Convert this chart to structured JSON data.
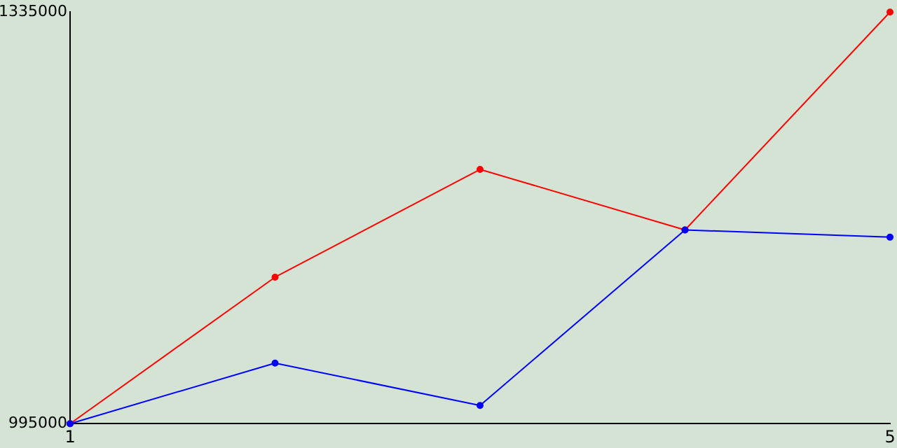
{
  "chart_data": {
    "type": "line",
    "x": [
      1,
      2,
      3,
      4,
      5
    ],
    "series": [
      {
        "color": "#ff0000",
        "values": [
          995000,
          1116000,
          1205000,
          1155000,
          1335000
        ]
      },
      {
        "color": "#0000ff",
        "values": [
          995000,
          1045000,
          1010000,
          1155000,
          1149000
        ]
      }
    ],
    "xlim": [
      1,
      5
    ],
    "xticks": [
      1,
      5
    ],
    "ylim": [
      995000,
      1335000
    ],
    "yticks": [
      995000,
      1335000
    ],
    "grid": false,
    "legend": false,
    "marker": "circle",
    "line_style": "solid"
  }
}
